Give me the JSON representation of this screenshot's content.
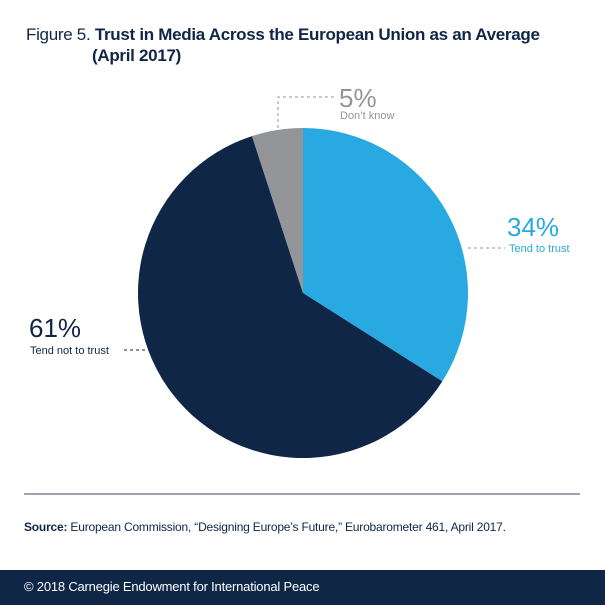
{
  "figure_label": "Figure 5.",
  "title_line1": "Trust in Media Across the European Union as an Average",
  "title_line2": "(April 2017)",
  "chart_data": {
    "type": "pie",
    "title": "Trust in Media Across the European Union as an Average (April 2017)",
    "slices": [
      {
        "label": "Tend to trust",
        "value": 34,
        "display": "34%",
        "color": "#29a9e1"
      },
      {
        "label": "Tend not to trust",
        "value": 61,
        "display": "61%",
        "color": "#0f2647"
      },
      {
        "label": "Don’t know",
        "value": 5,
        "display": "5%",
        "color": "#939598"
      }
    ],
    "start": "top",
    "direction": "clockwise"
  },
  "source_label": "Source:",
  "source_text": " European Commission, “Designing Europe’s Future,” Eurobarometer 461, April 2017.",
  "footer": "© 2018 Carnegie Endowment for International Peace"
}
